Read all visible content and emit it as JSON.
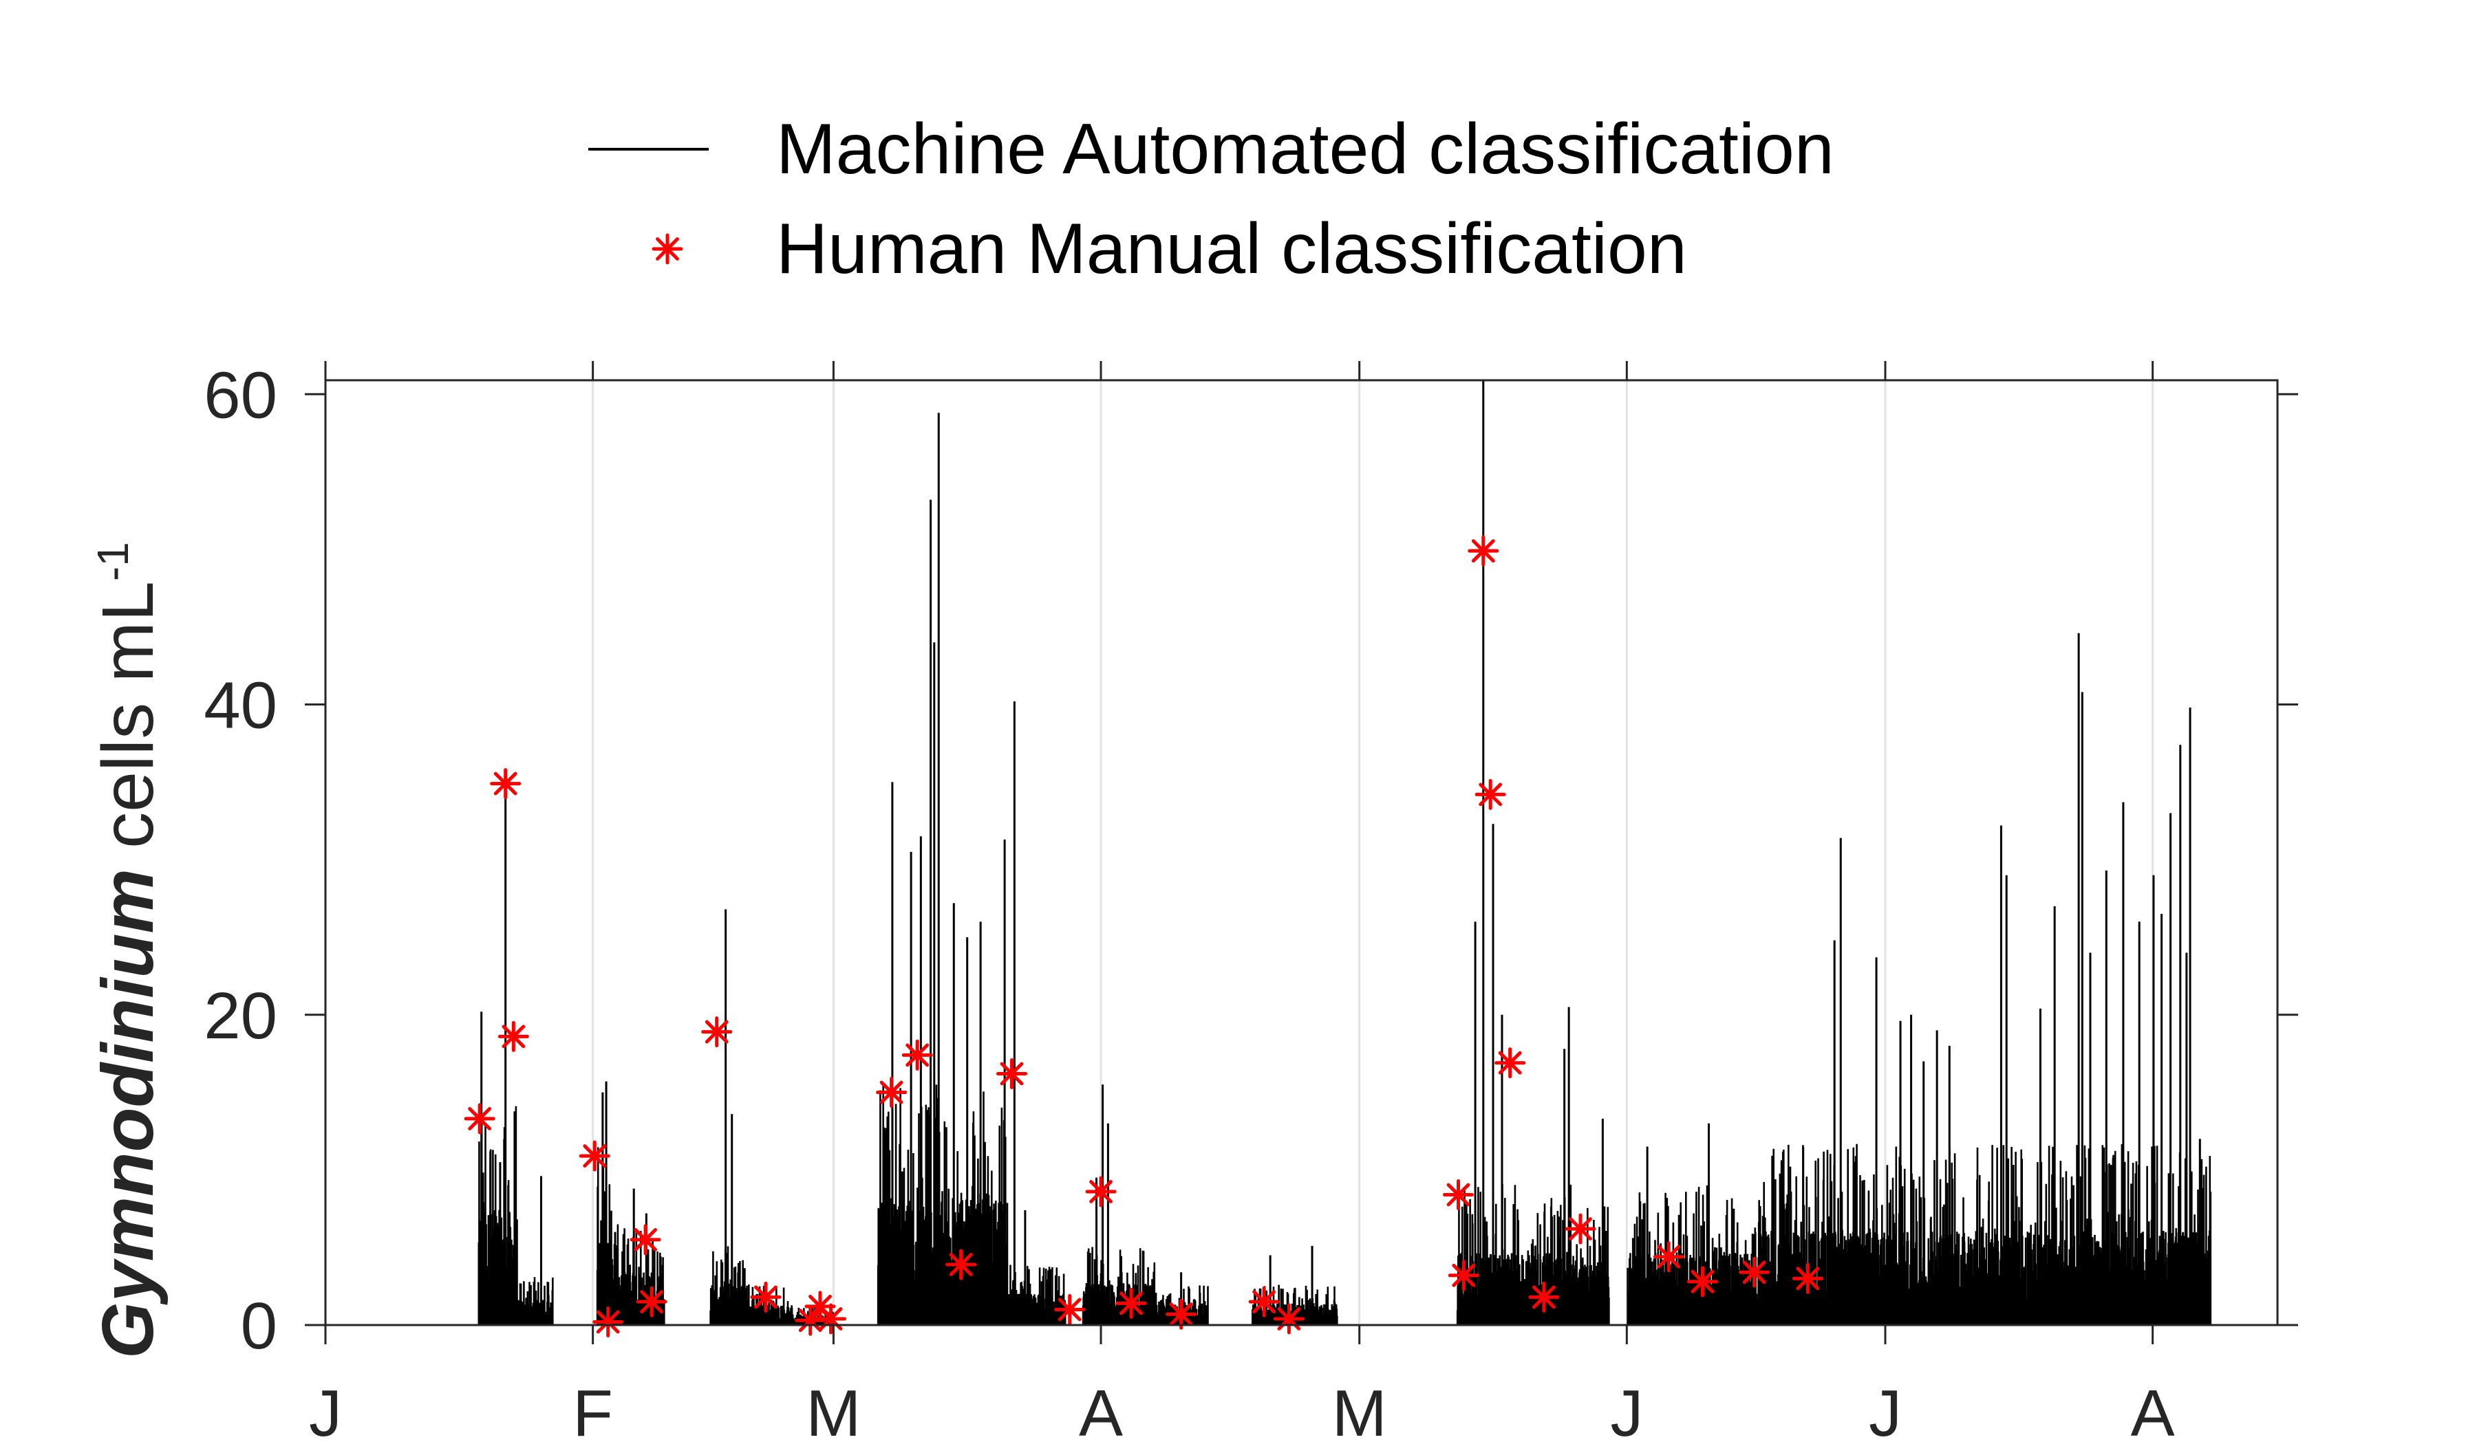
{
  "chart_data": {
    "type": "line",
    "legend": {
      "position": "top",
      "entries": [
        {
          "label": "Machine Automated classification",
          "color": "#000000",
          "marker": "line"
        },
        {
          "label": "Human Manual classification",
          "color": "#ff0000",
          "marker": "asterisk"
        }
      ]
    },
    "ylabel": {
      "italic": "Gymnodinium",
      "rest": " cells mL",
      "superscript": "-1"
    },
    "xlim": [
      0,
      219
    ],
    "ylim": [
      0,
      60.9
    ],
    "yticks": [
      0,
      20,
      40,
      60
    ],
    "xticks": [
      {
        "x": 0,
        "label": "J"
      },
      {
        "x": 30,
        "label": "F"
      },
      {
        "x": 57,
        "label": "M"
      },
      {
        "x": 87,
        "label": "A"
      },
      {
        "x": 116,
        "label": "M"
      },
      {
        "x": 146,
        "label": "J"
      },
      {
        "x": 175,
        "label": "J"
      },
      {
        "x": 205,
        "label": "A"
      }
    ],
    "grid": {
      "x": true,
      "y": false
    },
    "series": [
      {
        "name": "Machine Automated classification",
        "color": "#000000",
        "style": "spikes",
        "segments": [
          {
            "start": 17.2,
            "end": 21.5,
            "base": 5.5
          },
          {
            "start": 21.6,
            "end": 25.5,
            "base": 1.2
          },
          {
            "start": 30.5,
            "end": 32.2,
            "base": 4.5
          },
          {
            "start": 32.3,
            "end": 38.0,
            "base": 2.5
          },
          {
            "start": 43.2,
            "end": 47.5,
            "base": 2.0
          },
          {
            "start": 47.6,
            "end": 52.0,
            "base": 1.0
          },
          {
            "start": 52.1,
            "end": 57.0,
            "base": 0.5
          },
          {
            "start": 62.0,
            "end": 76.5,
            "base": 6.0
          },
          {
            "start": 76.6,
            "end": 83.0,
            "base": 1.5
          },
          {
            "start": 85.0,
            "end": 93.0,
            "base": 2.0
          },
          {
            "start": 93.1,
            "end": 99.0,
            "base": 1.0
          },
          {
            "start": 104.0,
            "end": 113.5,
            "base": 1.0
          },
          {
            "start": 127.0,
            "end": 140.0,
            "base": 3.5
          },
          {
            "start": 140.1,
            "end": 144.0,
            "base": 3.0
          },
          {
            "start": 146.1,
            "end": 160.0,
            "base": 3.5
          },
          {
            "start": 160.1,
            "end": 211.5,
            "base": 4.5
          }
        ],
        "peaks": [
          {
            "x": 17.5,
            "y": 20.2
          },
          {
            "x": 18.5,
            "y": 11.2
          },
          {
            "x": 20.2,
            "y": 34.6
          },
          {
            "x": 19.6,
            "y": 10.5
          },
          {
            "x": 24.2,
            "y": 9.6
          },
          {
            "x": 31.1,
            "y": 15.0
          },
          {
            "x": 31.5,
            "y": 15.7
          },
          {
            "x": 32.5,
            "y": 6.0
          },
          {
            "x": 34.6,
            "y": 8.8
          },
          {
            "x": 36.0,
            "y": 7.2
          },
          {
            "x": 44.9,
            "y": 26.8
          },
          {
            "x": 45.6,
            "y": 13.6
          },
          {
            "x": 63.6,
            "y": 35.0
          },
          {
            "x": 65.7,
            "y": 30.5
          },
          {
            "x": 66.8,
            "y": 31.5
          },
          {
            "x": 67.9,
            "y": 53.2
          },
          {
            "x": 68.8,
            "y": 58.8
          },
          {
            "x": 68.3,
            "y": 44.0
          },
          {
            "x": 70.5,
            "y": 27.2
          },
          {
            "x": 72.0,
            "y": 25.0
          },
          {
            "x": 73.5,
            "y": 26.0
          },
          {
            "x": 76.2,
            "y": 31.3
          },
          {
            "x": 77.3,
            "y": 40.2
          },
          {
            "x": 78.5,
            "y": 7.4
          },
          {
            "x": 86.5,
            "y": 9.5
          },
          {
            "x": 87.2,
            "y": 15.5
          },
          {
            "x": 87.8,
            "y": 13.0
          },
          {
            "x": 96.0,
            "y": 3.4
          },
          {
            "x": 106.0,
            "y": 4.5
          },
          {
            "x": 110.7,
            "y": 5.1
          },
          {
            "x": 128.0,
            "y": 7.8
          },
          {
            "x": 129.0,
            "y": 26.0
          },
          {
            "x": 129.9,
            "y": 60.9
          },
          {
            "x": 131.0,
            "y": 32.3
          },
          {
            "x": 132.0,
            "y": 20.0
          },
          {
            "x": 137.6,
            "y": 7.0
          },
          {
            "x": 139.0,
            "y": 17.8
          },
          {
            "x": 139.5,
            "y": 20.5
          },
          {
            "x": 143.3,
            "y": 13.3
          },
          {
            "x": 148.3,
            "y": 11.5
          },
          {
            "x": 150.5,
            "y": 8.2
          },
          {
            "x": 155.2,
            "y": 13.0
          },
          {
            "x": 158.0,
            "y": 7.5
          },
          {
            "x": 169.3,
            "y": 24.8
          },
          {
            "x": 170.0,
            "y": 31.4
          },
          {
            "x": 174.0,
            "y": 23.7
          },
          {
            "x": 176.7,
            "y": 19.6
          },
          {
            "x": 177.9,
            "y": 20.0
          },
          {
            "x": 179.3,
            "y": 17.0
          },
          {
            "x": 180.8,
            "y": 19.0
          },
          {
            "x": 182.2,
            "y": 18.0
          },
          {
            "x": 188.0,
            "y": 32.2
          },
          {
            "x": 188.6,
            "y": 29.0
          },
          {
            "x": 192.4,
            "y": 20.4
          },
          {
            "x": 194.0,
            "y": 27.0
          },
          {
            "x": 196.7,
            "y": 44.6
          },
          {
            "x": 197.1,
            "y": 40.8
          },
          {
            "x": 198.0,
            "y": 24.0
          },
          {
            "x": 199.8,
            "y": 29.3
          },
          {
            "x": 201.7,
            "y": 33.7
          },
          {
            "x": 203.5,
            "y": 26.0
          },
          {
            "x": 205.1,
            "y": 29.0
          },
          {
            "x": 206.0,
            "y": 26.5
          },
          {
            "x": 207.0,
            "y": 33.0
          },
          {
            "x": 208.1,
            "y": 37.4
          },
          {
            "x": 208.8,
            "y": 24.0
          },
          {
            "x": 209.2,
            "y": 39.8
          },
          {
            "x": 210.3,
            "y": 12.0
          },
          {
            "x": 211.0,
            "y": 4.2
          }
        ]
      },
      {
        "name": "Human Manual classification",
        "color": "#ff0000",
        "style": "markers",
        "points": [
          {
            "x": 17.3,
            "y": 13.3
          },
          {
            "x": 20.2,
            "y": 34.9
          },
          {
            "x": 21.1,
            "y": 18.6
          },
          {
            "x": 30.2,
            "y": 10.9
          },
          {
            "x": 31.7,
            "y": 0.2
          },
          {
            "x": 35.9,
            "y": 5.5
          },
          {
            "x": 36.6,
            "y": 1.5
          },
          {
            "x": 43.9,
            "y": 18.9
          },
          {
            "x": 49.4,
            "y": 1.8
          },
          {
            "x": 54.4,
            "y": 0.3
          },
          {
            "x": 55.5,
            "y": 1.2
          },
          {
            "x": 56.7,
            "y": 0.4
          },
          {
            "x": 63.5,
            "y": 15.0
          },
          {
            "x": 66.4,
            "y": 17.4
          },
          {
            "x": 71.3,
            "y": 3.9
          },
          {
            "x": 77.0,
            "y": 16.2
          },
          {
            "x": 83.5,
            "y": 1.0
          },
          {
            "x": 87.0,
            "y": 8.6
          },
          {
            "x": 90.4,
            "y": 1.4
          },
          {
            "x": 96.0,
            "y": 0.7
          },
          {
            "x": 105.3,
            "y": 1.5
          },
          {
            "x": 108.1,
            "y": 0.4
          },
          {
            "x": 127.1,
            "y": 8.4
          },
          {
            "x": 127.7,
            "y": 3.2
          },
          {
            "x": 129.9,
            "y": 49.9
          },
          {
            "x": 130.7,
            "y": 34.2
          },
          {
            "x": 132.9,
            "y": 16.9
          },
          {
            "x": 136.7,
            "y": 1.8
          },
          {
            "x": 140.8,
            "y": 6.2
          },
          {
            "x": 150.7,
            "y": 4.4
          },
          {
            "x": 154.5,
            "y": 2.8
          },
          {
            "x": 160.3,
            "y": 3.4
          },
          {
            "x": 166.3,
            "y": 3.0
          }
        ]
      }
    ]
  }
}
